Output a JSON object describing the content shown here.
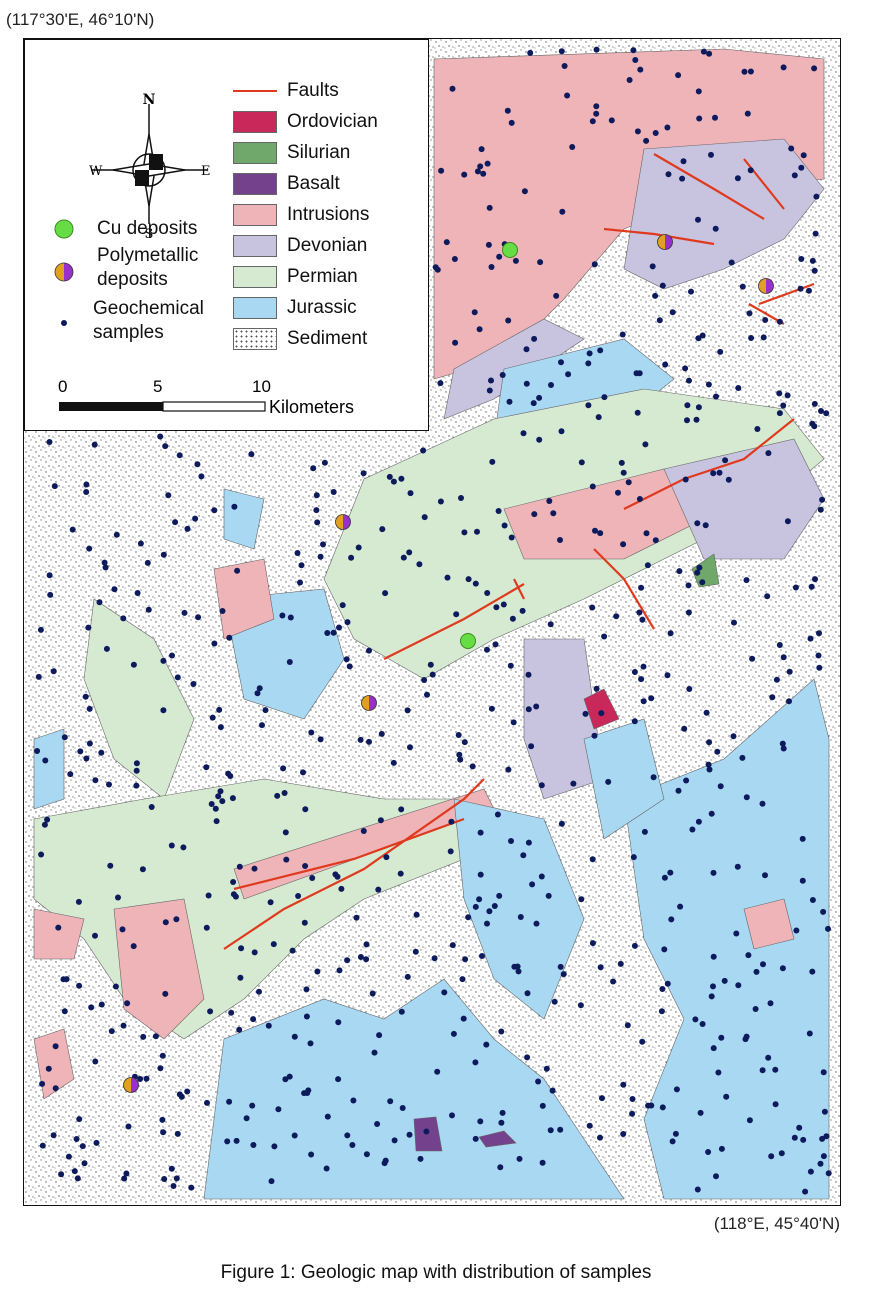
{
  "coordinates": {
    "northwest": "(117°30'E, 46°10'N)",
    "southeast": "(118°E, 45°40'N)"
  },
  "legend": {
    "compass": {
      "north": "N",
      "south": "S",
      "east": "E",
      "west": "W"
    },
    "units": [
      {
        "label": "Faults",
        "kind": "line",
        "color": "#e03a1e"
      },
      {
        "label": "Ordovician",
        "kind": "fill",
        "color": "#c8285a"
      },
      {
        "label": "Silurian",
        "kind": "fill",
        "color": "#6fa86a"
      },
      {
        "label": "Basalt",
        "kind": "fill",
        "color": "#74428c"
      },
      {
        "label": "Intrusions",
        "kind": "fill",
        "color": "#eeb4b8"
      },
      {
        "label": "Devonian",
        "kind": "fill",
        "color": "#c8c4e0"
      },
      {
        "label": "Permian",
        "kind": "fill",
        "color": "#d6ead2"
      },
      {
        "label": "Jurassic",
        "kind": "fill",
        "color": "#a9d8f3"
      },
      {
        "label": "Sediment",
        "kind": "dots",
        "color": "#ffffff"
      }
    ],
    "symbols": {
      "cu": "Cu deposits",
      "poly_1": "Polymetallic",
      "poly_2": "deposits",
      "geo_1": "Geochemical",
      "geo_2": "samples"
    },
    "scale": {
      "ticks": [
        "0",
        "5",
        "10"
      ],
      "unit": "Kilometers"
    }
  },
  "colors": {
    "cu_deposit": "#66dd44",
    "poly_left": "#e0a020",
    "poly_right": "#9930cc",
    "sample": "#0d1a5c",
    "fault": "#e03a1e",
    "intrusions": "#eeb4b8",
    "devonian": "#c8c4e0",
    "permian": "#d6ead2",
    "jurassic": "#a9d8f3",
    "ordovician": "#c8285a",
    "silurian": "#6fa86a",
    "basalt": "#74428c"
  },
  "caption": "Figure 1: Geologic map with distribution of samples"
}
